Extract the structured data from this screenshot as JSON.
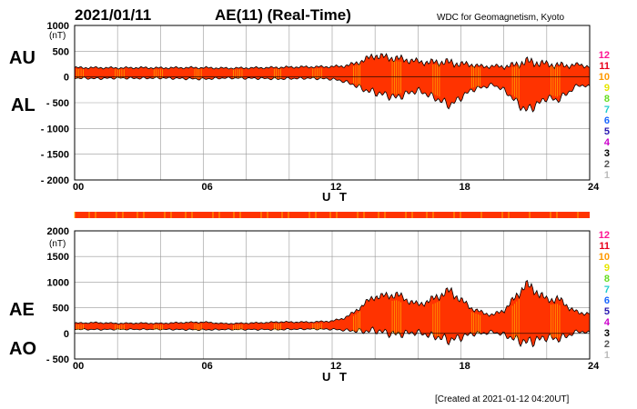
{
  "header": {
    "date": "2021/01/11",
    "title": "AE(11) (Real-Time)",
    "organization": "WDC for Geomagnetism, Kyoto"
  },
  "footer": {
    "created": "[Created at 2021-01-12 04:20UT]"
  },
  "legend": {
    "labels": [
      "12",
      "11",
      "10",
      "9",
      "8",
      "7",
      "6",
      "5",
      "4",
      "3",
      "2",
      "1"
    ],
    "colors": [
      "#ff1493",
      "#e8001a",
      "#ff9900",
      "#e6e600",
      "#66dd22",
      "#22cccc",
      "#1a66ff",
      "#2a1ab0",
      "#cc00cc",
      "#000000",
      "#555555",
      "#bbbbbb"
    ]
  },
  "colors": {
    "fill": "#ff3300",
    "outline": "#000000",
    "grid": "#999999",
    "accent": "#ffcc00"
  },
  "chart_data": [
    {
      "type": "area",
      "panel": "AU/AL",
      "series_labels": [
        "AU",
        "AL"
      ],
      "unit": "(nT)",
      "xlabel": "U T",
      "xlim": [
        0,
        24
      ],
      "ylim": [
        -2000,
        1000
      ],
      "x_ticks": [
        "00",
        "06",
        "12",
        "18",
        "24"
      ],
      "y_ticks": [
        "1000",
        "500",
        "0",
        "- 500",
        "- 1000",
        "- 1500",
        "- 2000"
      ],
      "grid": true,
      "x": [
        0,
        1,
        2,
        3,
        4,
        5,
        6,
        7,
        8,
        9,
        9.5,
        10,
        11,
        12,
        12.5,
        13,
        13.5,
        14,
        14.5,
        15,
        15.5,
        16,
        16.5,
        17,
        17.5,
        18,
        18.5,
        19,
        19.5,
        20,
        20.5,
        21,
        21.5,
        22,
        22.5,
        23,
        23.5,
        24
      ],
      "series": [
        {
          "name": "AU",
          "values": [
            180,
            180,
            175,
            180,
            175,
            180,
            180,
            170,
            175,
            180,
            185,
            190,
            195,
            200,
            210,
            250,
            330,
            420,
            380,
            360,
            330,
            300,
            280,
            290,
            280,
            250,
            240,
            200,
            210,
            200,
            230,
            300,
            280,
            250,
            230,
            220,
            240,
            200
          ]
        },
        {
          "name": "AL",
          "values": [
            -20,
            -30,
            -20,
            -25,
            -20,
            -30,
            -40,
            -20,
            -25,
            -30,
            -40,
            -30,
            -25,
            -40,
            -80,
            -150,
            -250,
            -300,
            -350,
            -400,
            -320,
            -260,
            -350,
            -450,
            -550,
            -400,
            -250,
            -200,
            -150,
            -250,
            -450,
            -650,
            -550,
            -400,
            -450,
            -300,
            -150,
            -200
          ]
        }
      ],
      "legend_position": "right"
    },
    {
      "type": "area",
      "panel": "AE/AO",
      "series_labels": [
        "AE",
        "AO"
      ],
      "unit": "(nT)",
      "xlabel": "U T",
      "xlim": [
        0,
        24
      ],
      "ylim": [
        -500,
        2000
      ],
      "x_ticks": [
        "00",
        "06",
        "12",
        "18",
        "24"
      ],
      "y_ticks": [
        "2000",
        "1500",
        "1000",
        "500",
        "0",
        "- 500"
      ],
      "grid": true,
      "x": [
        0,
        1,
        2,
        3,
        4,
        5,
        6,
        7,
        8,
        9,
        9.5,
        10,
        11,
        12,
        12.5,
        13,
        13.5,
        14,
        14.5,
        15,
        15.5,
        16,
        16.5,
        17,
        17.5,
        18,
        18.5,
        19,
        19.5,
        20,
        20.5,
        21,
        21.5,
        22,
        22.5,
        23,
        23.5,
        24
      ],
      "series": [
        {
          "name": "AE",
          "values": [
            200,
            210,
            195,
            200,
            195,
            210,
            220,
            190,
            200,
            210,
            225,
            220,
            220,
            240,
            290,
            400,
            580,
            720,
            730,
            760,
            650,
            560,
            630,
            740,
            830,
            650,
            490,
            400,
            360,
            450,
            680,
            950,
            830,
            650,
            680,
            520,
            390,
            400
          ]
        },
        {
          "name": "AO",
          "values": [
            80,
            75,
            78,
            78,
            78,
            75,
            70,
            75,
            75,
            75,
            72,
            80,
            85,
            80,
            65,
            50,
            40,
            60,
            15,
            -20,
            5,
            20,
            -35,
            -80,
            -135,
            -75,
            -5,
            0,
            30,
            -25,
            -110,
            -175,
            -135,
            -75,
            -110,
            -40,
            45,
            0
          ]
        }
      ],
      "legend_position": "right"
    }
  ]
}
